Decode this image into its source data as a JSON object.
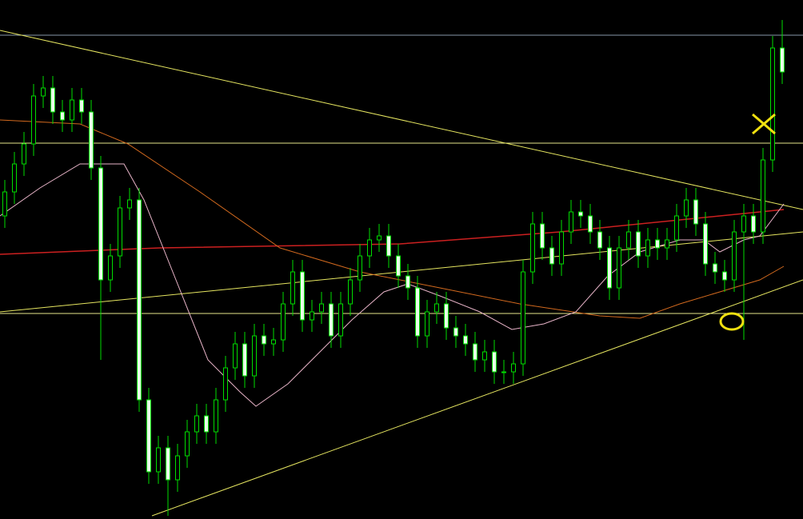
{
  "chart_data": {
    "type": "candlestick",
    "open": [
      379,
      409,
      444,
      469,
      529,
      539,
      509,
      499,
      524,
      509,
      439,
      299,
      329,
      389,
      399,
      149,
      59,
      89,
      49,
      79,
      109,
      129,
      109,
      149,
      189,
      219,
      179,
      229,
      219,
      224,
      269,
      309,
      249,
      259,
      269,
      229,
      269,
      299,
      329,
      349,
      354,
      329,
      304,
      289,
      229,
      259,
      269,
      239,
      229,
      219,
      199,
      209,
      184,
      184,
      194,
      309,
      369,
      339,
      319,
      359,
      384,
      379,
      359,
      339,
      289,
      339,
      359,
      329,
      349,
      339,
      349,
      379,
      399,
      369,
      319,
      309,
      299,
      359,
      379,
      359,
      449,
      589
    ],
    "high": [
      424,
      459,
      484,
      544,
      554,
      554,
      524,
      539,
      539,
      524,
      454,
      344,
      404,
      414,
      414,
      164,
      104,
      104,
      94,
      124,
      144,
      144,
      164,
      204,
      234,
      234,
      244,
      244,
      239,
      284,
      324,
      324,
      274,
      284,
      284,
      284,
      314,
      344,
      364,
      369,
      369,
      344,
      319,
      304,
      274,
      284,
      284,
      254,
      244,
      234,
      224,
      224,
      199,
      209,
      324,
      384,
      384,
      354,
      374,
      399,
      399,
      394,
      374,
      354,
      354,
      374,
      374,
      364,
      364,
      364,
      394,
      414,
      414,
      384,
      334,
      324,
      374,
      394,
      394,
      464,
      604,
      624
    ],
    "low": [
      364,
      394,
      429,
      454,
      514,
      494,
      484,
      484,
      494,
      424,
      199,
      284,
      314,
      374,
      134,
      44,
      44,
      4,
      34,
      64,
      94,
      94,
      94,
      134,
      174,
      164,
      164,
      204,
      204,
      209,
      254,
      234,
      234,
      244,
      214,
      214,
      254,
      284,
      314,
      334,
      314,
      289,
      274,
      214,
      214,
      244,
      224,
      214,
      204,
      184,
      184,
      169,
      169,
      169,
      179,
      294,
      324,
      304,
      304,
      344,
      364,
      344,
      324,
      274,
      274,
      324,
      314,
      314,
      324,
      324,
      334,
      364,
      354,
      304,
      294,
      284,
      284,
      224,
      344,
      344,
      434,
      544
    ],
    "close": [
      409,
      444,
      469,
      529,
      539,
      509,
      499,
      524,
      509,
      439,
      299,
      329,
      389,
      399,
      149,
      59,
      89,
      49,
      79,
      109,
      129,
      109,
      149,
      189,
      219,
      179,
      229,
      219,
      224,
      269,
      309,
      249,
      259,
      269,
      229,
      269,
      299,
      329,
      349,
      354,
      329,
      304,
      289,
      229,
      259,
      269,
      239,
      229,
      219,
      199,
      209,
      184,
      184,
      194,
      309,
      369,
      339,
      319,
      359,
      384,
      379,
      359,
      339,
      289,
      339,
      359,
      329,
      349,
      339,
      349,
      379,
      399,
      369,
      319,
      309,
      299,
      359,
      379,
      359,
      449,
      589,
      559
    ],
    "ylim": [
      0,
      649
    ],
    "up_color": "#000000",
    "down_color": "#e8ffe8",
    "wick_color": "#00dd00"
  }
}
